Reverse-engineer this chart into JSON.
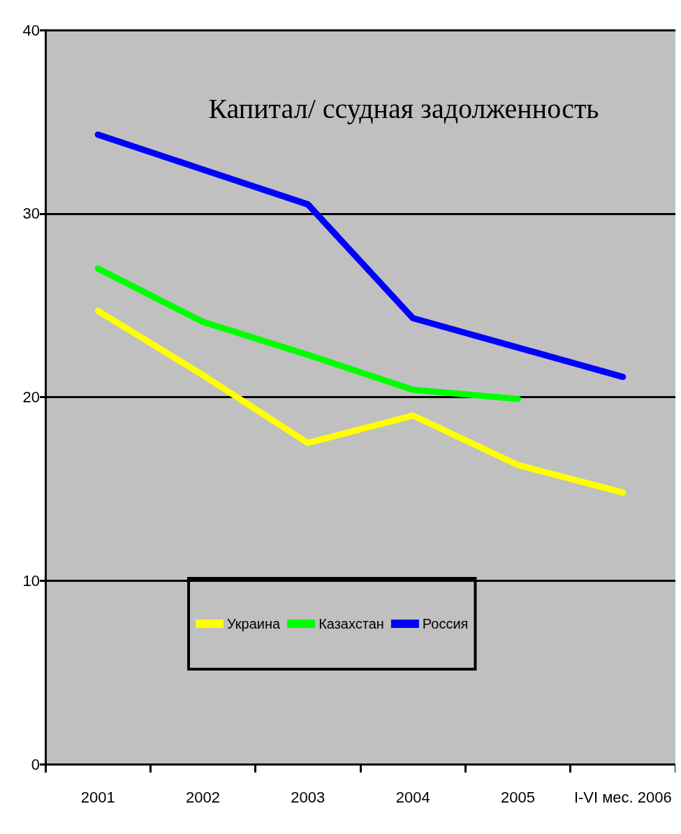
{
  "chart_data": {
    "type": "line",
    "title": "Капитал/ ссудная задолженность",
    "categories": [
      "2001",
      "2002",
      "2003",
      "2004",
      "2005",
      "I-VI мес. 2006"
    ],
    "series": [
      {
        "name": "Украина",
        "color": "#ffff00",
        "values": [
          24.7,
          21.2,
          17.5,
          19.0,
          16.3,
          14.8
        ]
      },
      {
        "name": "Казахстан",
        "color": "#00ff00",
        "values": [
          27.0,
          24.1,
          22.3,
          20.4,
          19.9,
          null
        ]
      },
      {
        "name": "Россия",
        "color": "#0000ff",
        "values": [
          34.3,
          32.4,
          30.5,
          24.3,
          22.7,
          21.1
        ]
      }
    ],
    "ylim": [
      0,
      40
    ],
    "yticks": [
      0,
      10,
      20,
      30,
      40
    ],
    "grid": "y",
    "legend": "bottom",
    "marker": "none",
    "line_style": "solid"
  }
}
